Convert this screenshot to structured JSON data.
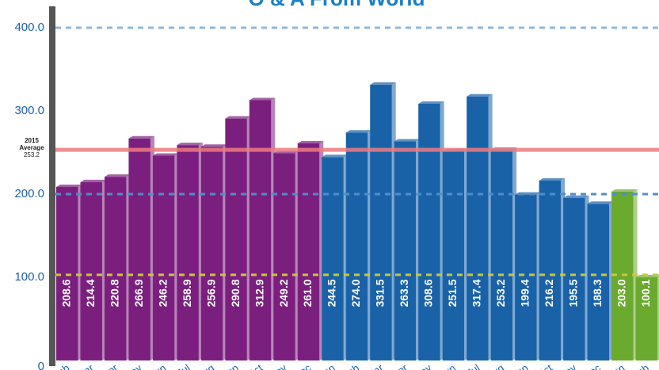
{
  "chart_data": {
    "type": "bar",
    "title": "O & A From World",
    "categories": [
      "Feb",
      "Mar",
      "Apr",
      "May",
      "Jun",
      "Jul",
      "Aug",
      "Sep",
      "Oct",
      "Nov",
      "Dec",
      "Jan",
      "Feb",
      "Mar",
      "Apr",
      "May",
      "Jun",
      "Jul",
      "Aug",
      "Sep",
      "Oct",
      "Nov",
      "Dec",
      "Jan",
      "Feb"
    ],
    "series": [
      {
        "color": "#7b1f7e",
        "values": [
          208.6,
          214.4,
          220.8,
          266.9,
          246.2,
          258.9,
          256.9,
          290.8,
          312.9,
          249.2,
          261.0,
          null,
          null,
          null,
          null,
          null,
          null,
          null,
          null,
          null,
          null,
          null,
          null,
          null,
          null
        ],
        "value_labels": [
          "208.6",
          "214.4",
          "220.8",
          "266.9",
          "246.2",
          "258.9",
          "256.9",
          "290.8",
          "312.9",
          "249.2",
          "261.0",
          null,
          null,
          null,
          null,
          null,
          null,
          null,
          null,
          null,
          null,
          null,
          null,
          null,
          null
        ]
      },
      {
        "color": "#1a62a8",
        "values": [
          null,
          null,
          null,
          null,
          null,
          null,
          null,
          null,
          null,
          null,
          null,
          244.5,
          274.0,
          331.5,
          263.3,
          308.6,
          251.5,
          317.4,
          253.2,
          199.4,
          216.2,
          195.5,
          188.3,
          null,
          null
        ],
        "value_labels": [
          null,
          null,
          null,
          null,
          null,
          null,
          null,
          null,
          null,
          null,
          null,
          "244.5",
          "274.0",
          "331.5",
          "263.3",
          "308.6",
          "251.5",
          "317.4",
          "253.2",
          "199.4",
          "216.2",
          "195.5",
          "188.3",
          null,
          null
        ]
      },
      {
        "color": "#6aaa2e",
        "values": [
          null,
          null,
          null,
          null,
          null,
          null,
          null,
          null,
          null,
          null,
          null,
          null,
          null,
          null,
          null,
          null,
          null,
          null,
          null,
          null,
          null,
          null,
          null,
          203.0,
          100.1
        ],
        "value_labels": [
          null,
          null,
          null,
          null,
          null,
          null,
          null,
          null,
          null,
          null,
          null,
          null,
          null,
          null,
          null,
          null,
          null,
          null,
          null,
          null,
          null,
          null,
          null,
          "203.0",
          "100.1"
        ]
      }
    ],
    "ylim": [
      0,
      400
    ],
    "yticks": [
      0,
      {
        "value": 100,
        "label": "100.0"
      },
      {
        "value": 200,
        "label": "200.0"
      },
      {
        "value": 300,
        "label": "300.0"
      },
      {
        "value": 400,
        "label": "400.0"
      }
    ],
    "reference_lines": [
      {
        "value": 400,
        "color": "#8fb8dc"
      },
      {
        "value": 200,
        "color": "#4f8fc8"
      },
      {
        "value": 103,
        "color": "#c8c83a"
      }
    ],
    "average": {
      "lines": [
        "2015",
        "Average"
      ],
      "value": 253.2,
      "color": "#ee7b80"
    }
  }
}
